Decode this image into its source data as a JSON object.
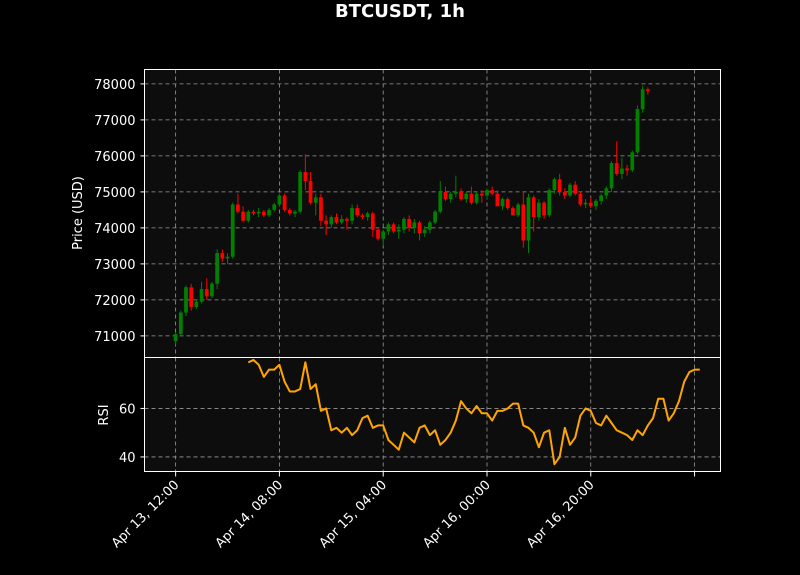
{
  "chart_data": [
    {
      "type": "candlestick",
      "title": "BTCUSDT, 1h",
      "ylabel": "Price (USD)",
      "ylim": [
        70400,
        78400
      ],
      "yticks": [
        71000,
        72000,
        73000,
        74000,
        75000,
        76000,
        77000,
        78000
      ],
      "xticks": [
        "Apr 13, 12:00",
        "Apr 14, 08:00",
        "Apr 15, 04:00",
        "Apr 16, 00:00",
        "Apr 16, 20:00"
      ],
      "xtick_index": [
        0,
        20,
        40,
        60,
        80
      ],
      "x_range": [
        -6,
        105
      ],
      "grid": true,
      "colors": {
        "up": "#008000",
        "down": "#ff0000",
        "background": "#0d0d0d",
        "grid": "#9a9a9a"
      },
      "series": [
        {
          "values": [
            [
              70850,
              71100,
              70750,
              71050
            ],
            [
              71050,
              71700,
              71000,
              71650
            ],
            [
              71650,
              72400,
              71550,
              72350
            ],
            [
              72350,
              72450,
              71700,
              71800
            ],
            [
              71800,
              72000,
              71750,
              71950
            ],
            [
              71950,
              72500,
              71900,
              72300
            ],
            [
              72300,
              72600,
              72000,
              72100
            ],
            [
              72100,
              72500,
              72050,
              72450
            ],
            [
              72450,
              73400,
              72300,
              73300
            ],
            [
              73300,
              73400,
              73050,
              73150
            ],
            [
              73150,
              73300,
              73000,
              73200
            ],
            [
              73200,
              74700,
              73150,
              74650
            ],
            [
              74650,
              74950,
              74400,
              74450
            ],
            [
              74450,
              74600,
              74150,
              74200
            ],
            [
              74200,
              74500,
              74150,
              74450
            ],
            [
              74450,
              74500,
              74350,
              74400
            ],
            [
              74400,
              74550,
              74300,
              74450
            ],
            [
              74450,
              74500,
              74300,
              74350
            ],
            [
              74350,
              74550,
              74300,
              74500
            ],
            [
              74500,
              74700,
              74450,
              74650
            ],
            [
              74650,
              74950,
              74600,
              74900
            ],
            [
              74900,
              74950,
              74450,
              74500
            ],
            [
              74500,
              74550,
              74350,
              74400
            ],
            [
              74400,
              74500,
              74300,
              74450
            ],
            [
              74450,
              75600,
              74400,
              75550
            ],
            [
              75550,
              76050,
              75050,
              75300
            ],
            [
              75300,
              75550,
              74650,
              74700
            ],
            [
              74700,
              74950,
              74350,
              74850
            ],
            [
              74850,
              74950,
              74050,
              74200
            ],
            [
              74200,
              74350,
              73800,
              74100
            ],
            [
              74100,
              74350,
              74000,
              74300
            ],
            [
              74300,
              74400,
              74100,
              74150
            ],
            [
              74150,
              74350,
              74100,
              74250
            ],
            [
              74250,
              74300,
              73950,
              74200
            ],
            [
              74200,
              74650,
              74100,
              74550
            ],
            [
              74550,
              74650,
              74300,
              74350
            ],
            [
              74350,
              74400,
              74250,
              74300
            ],
            [
              74300,
              74450,
              74200,
              74400
            ],
            [
              74400,
              74450,
              73750,
              73950
            ],
            [
              73950,
              74000,
              73650,
              73700
            ],
            [
              73700,
              73950,
              73500,
              73900
            ],
            [
              73900,
              74150,
              73800,
              74100
            ],
            [
              74100,
              74150,
              73850,
              73900
            ],
            [
              73900,
              74100,
              73700,
              73950
            ],
            [
              73950,
              74300,
              73850,
              74250
            ],
            [
              74250,
              74350,
              73900,
              74000
            ],
            [
              74000,
              74250,
              73850,
              74150
            ],
            [
              74150,
              74200,
              73650,
              73850
            ],
            [
              73850,
              74050,
              73750,
              73950
            ],
            [
              73950,
              74200,
              73850,
              74150
            ],
            [
              74150,
              74500,
              74100,
              74450
            ],
            [
              74450,
              75300,
              74400,
              75000
            ],
            [
              75000,
              75150,
              74750,
              74800
            ],
            [
              74800,
              75000,
              74700,
              74950
            ],
            [
              74950,
              75450,
              74850,
              75000
            ],
            [
              75000,
              75100,
              74750,
              74800
            ],
            [
              74800,
              75000,
              74700,
              74950
            ],
            [
              74950,
              75150,
              74650,
              74700
            ],
            [
              74700,
              75000,
              74650,
              74950
            ],
            [
              74950,
              75050,
              74700,
              74900
            ],
            [
              74900,
              75100,
              74800,
              75050
            ],
            [
              75050,
              75150,
              74900,
              74950
            ],
            [
              74950,
              75050,
              74600,
              74600
            ],
            [
              74600,
              74850,
              74500,
              74800
            ],
            [
              74800,
              74850,
              74500,
              74550
            ],
            [
              74550,
              74600,
              74350,
              74350
            ],
            [
              74350,
              74700,
              74300,
              74650
            ],
            [
              74650,
              75000,
              73450,
              73650
            ],
            [
              73650,
              74950,
              73300,
              74850
            ],
            [
              74850,
              74900,
              73900,
              74300
            ],
            [
              74300,
              74800,
              74200,
              74700
            ],
            [
              74700,
              74750,
              74250,
              74350
            ],
            [
              74350,
              75100,
              74300,
              75050
            ],
            [
              75050,
              75400,
              74950,
              75350
            ],
            [
              75350,
              75500,
              74900,
              75000
            ],
            [
              75000,
              75100,
              74800,
              74900
            ],
            [
              74900,
              75250,
              74850,
              75200
            ],
            [
              75200,
              75300,
              74900,
              74950
            ],
            [
              74950,
              75000,
              74600,
              74650
            ],
            [
              74650,
              74800,
              74550,
              74700
            ],
            [
              74700,
              74850,
              74550,
              74600
            ],
            [
              74600,
              74800,
              74500,
              74750
            ],
            [
              74750,
              74950,
              74650,
              74900
            ],
            [
              74900,
              75150,
              74800,
              75100
            ],
            [
              75100,
              75850,
              75000,
              75800
            ],
            [
              75800,
              76400,
              75450,
              75500
            ],
            [
              75500,
              75950,
              75350,
              75650
            ],
            [
              75650,
              75750,
              75450,
              75600
            ],
            [
              75600,
              76150,
              75550,
              76100
            ],
            [
              76100,
              77400,
              76050,
              77300
            ],
            [
              77300,
              77950,
              77200,
              77850
            ],
            [
              77850,
              77900,
              77700,
              77800
            ]
          ]
        }
      ]
    },
    {
      "type": "line",
      "ylabel": "RSI",
      "ylim": [
        34,
        81
      ],
      "yticks": [
        40,
        60
      ],
      "x_range": [
        -6,
        105
      ],
      "x_start_index": 14,
      "grid": true,
      "colors": {
        "line": "#ffa500",
        "background": "#0d0d0d",
        "grid": "#9a9a9a"
      },
      "series": [
        {
          "values": [
            79,
            80,
            78,
            73,
            76,
            76,
            78,
            71,
            67,
            67,
            68,
            79,
            68,
            70,
            59,
            60,
            51,
            52,
            50,
            52,
            49,
            51,
            56,
            57,
            52,
            53,
            53,
            47,
            45,
            43,
            50,
            48,
            46,
            52,
            53,
            49,
            51,
            45,
            47,
            50,
            55,
            63,
            60,
            58,
            61,
            58,
            58,
            55,
            59,
            59,
            60,
            62,
            62,
            53,
            52,
            50,
            44,
            50,
            51,
            37,
            40,
            52,
            45,
            48,
            57,
            60,
            59,
            54,
            53,
            57,
            54,
            51,
            50,
            49,
            47,
            51,
            49,
            53,
            56,
            64,
            64,
            55,
            58,
            63,
            71,
            75,
            76,
            76
          ]
        }
      ]
    }
  ]
}
